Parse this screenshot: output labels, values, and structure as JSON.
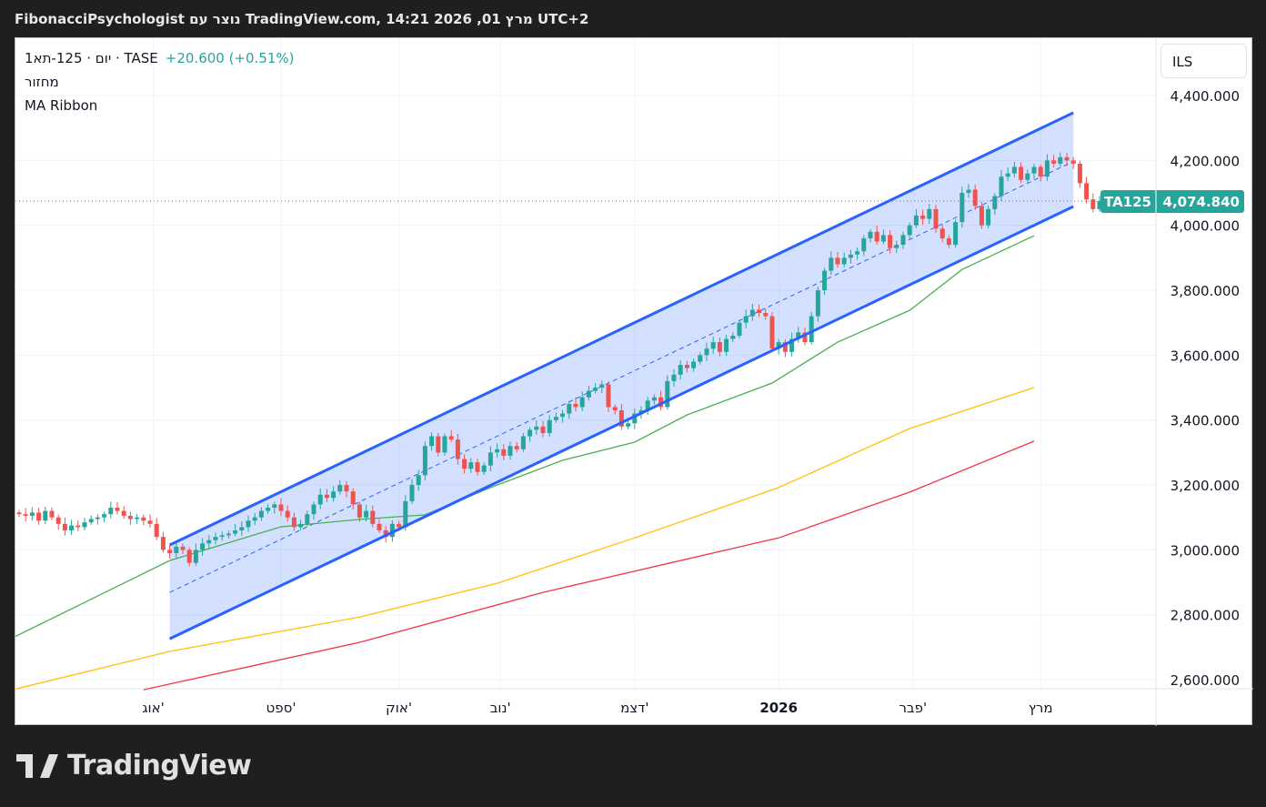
{
  "title": "FibonacciPsychologist נוצר עם TradingView.com, 14:21 2026 ,01 מרץ UTC+2",
  "legend": {
    "symbol": "1יום · 125-תא · TASE",
    "change": "+20.600 (+0.51%)",
    "volume": "מחזור",
    "indicator": "MA Ribbon"
  },
  "currency": "ILS",
  "logo": "TradingView",
  "chart_data": {
    "type": "candlestick",
    "symbol_tag": "TA125",
    "last_price": 4074.84,
    "last_price_label": "4,074.840",
    "ylim": [
      2560,
      4500
    ],
    "yticks": [
      4400,
      4200,
      4000,
      3800,
      3600,
      3400,
      3200,
      3000,
      2800,
      2600
    ],
    "ytick_labels": [
      "4,400.000",
      "4,200.000",
      "4,000.000",
      "3,800.000",
      "3,600.000",
      "3,400.000",
      "3,200.000",
      "3,000.000",
      "2,800.000",
      "2,600.000"
    ],
    "xticks": [
      {
        "i": 20.5,
        "label": "אוג'"
      },
      {
        "i": 40,
        "label": "ספט'"
      },
      {
        "i": 58,
        "label": "אוק'"
      },
      {
        "i": 73.5,
        "label": "נוב'"
      },
      {
        "i": 94,
        "label": "דצמ'"
      },
      {
        "i": 116,
        "label": "2026",
        "bold": true
      },
      {
        "i": 136.5,
        "label": "פבר'"
      },
      {
        "i": 156,
        "label": "מרץ"
      }
    ],
    "closes": [
      3110,
      3105,
      3115,
      3090,
      3120,
      3100,
      3080,
      3060,
      3075,
      3070,
      3085,
      3095,
      3100,
      3110,
      3130,
      3120,
      3105,
      3095,
      3100,
      3090,
      3080,
      3040,
      3000,
      2990,
      3010,
      3000,
      2960,
      3000,
      3020,
      3030,
      3040,
      3045,
      3050,
      3060,
      3070,
      3090,
      3100,
      3120,
      3130,
      3140,
      3120,
      3100,
      3070,
      3080,
      3110,
      3140,
      3170,
      3160,
      3180,
      3200,
      3180,
      3140,
      3100,
      3120,
      3080,
      3060,
      3040,
      3080,
      3070,
      3150,
      3200,
      3230,
      3320,
      3350,
      3300,
      3350,
      3340,
      3280,
      3250,
      3270,
      3240,
      3260,
      3300,
      3310,
      3290,
      3320,
      3310,
      3350,
      3370,
      3380,
      3360,
      3400,
      3410,
      3420,
      3450,
      3440,
      3470,
      3490,
      3500,
      3510,
      3440,
      3430,
      3380,
      3390,
      3420,
      3430,
      3460,
      3470,
      3440,
      3520,
      3540,
      3570,
      3560,
      3580,
      3600,
      3620,
      3640,
      3610,
      3650,
      3660,
      3700,
      3720,
      3740,
      3730,
      3720,
      3620,
      3640,
      3610,
      3650,
      3670,
      3640,
      3720,
      3800,
      3860,
      3900,
      3880,
      3900,
      3910,
      3920,
      3960,
      3980,
      3950,
      3970,
      3930,
      3940,
      3970,
      4000,
      4030,
      4020,
      4050,
      3990,
      3960,
      3940,
      4010,
      4100,
      4110,
      4060,
      4000,
      4050,
      4090,
      4150,
      4160,
      4180,
      4140,
      4160,
      4180,
      4150,
      4200,
      4190,
      4210,
      4200,
      4190,
      4130,
      4080,
      4050,
      4075
    ],
    "ma_lines": [
      {
        "name": "MA fast",
        "color": "#4caf50",
        "points": [
          [
            -1,
            2729
          ],
          [
            23,
            2967
          ],
          [
            40,
            3071
          ],
          [
            52,
            3094
          ],
          [
            62,
            3108
          ],
          [
            72,
            3192
          ],
          [
            83,
            3276
          ],
          [
            94,
            3332
          ],
          [
            102,
            3416
          ],
          [
            115,
            3514
          ],
          [
            125,
            3640
          ],
          [
            136,
            3738
          ],
          [
            144,
            3864
          ],
          [
            155,
            3968
          ]
        ]
      },
      {
        "name": "MA mid",
        "color": "#ffc107",
        "points": [
          [
            -1,
            2569
          ],
          [
            23,
            2687
          ],
          [
            52,
            2793
          ],
          [
            73,
            2897
          ],
          [
            94,
            3037
          ],
          [
            116,
            3192
          ],
          [
            136,
            3374
          ],
          [
            155,
            3500
          ]
        ]
      },
      {
        "name": "MA slow",
        "color": "#f23645",
        "points": [
          [
            19,
            2569
          ],
          [
            52,
            2715
          ],
          [
            80,
            2869
          ],
          [
            116,
            3037
          ],
          [
            136,
            3178
          ],
          [
            155,
            3335
          ]
        ]
      }
    ],
    "channel": {
      "color": "#2962ff",
      "fill": "rgba(41,98,255,0.2)",
      "start_i": 23,
      "end_i": 161,
      "upper": [
        3015,
        4347
      ],
      "lower": [
        2726,
        4058
      ],
      "mid": [
        2869,
        4197
      ]
    },
    "up_color": "#26a69a",
    "down_color": "#ef5350"
  }
}
